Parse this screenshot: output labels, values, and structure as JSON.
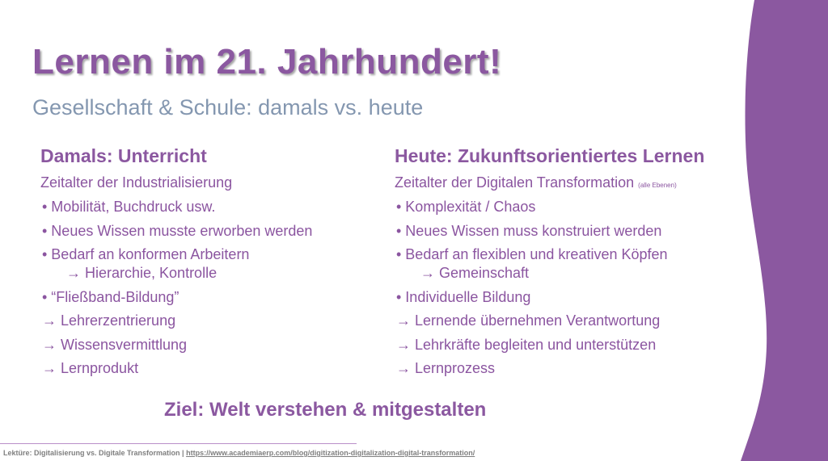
{
  "colors": {
    "accent": "#8b58a0",
    "subtitle": "#8497b0",
    "footer": "#7f7f7f"
  },
  "title": "Lernen im 21. Jahrhundert!",
  "subtitle": "Gesellschaft & Schule: damals vs. heute",
  "left": {
    "heading": "Damals: Unterricht",
    "intro": "Zeitalter der Industrialisierung",
    "items": [
      "•  Mobilität, Buchdruck usw.",
      "•  Neues Wissen musste erworben werden",
      "•  Bedarf an konformen Arbeitern",
      "      → Hierarchie, Kontrolle",
      "•  “Fließband-Bildung”",
      "→ Lehrerzentrierung",
      "→ Wissensvermittlung",
      "→ Lernprodukt"
    ]
  },
  "right": {
    "heading": "Heute: Zukunftsorientiertes Lernen",
    "intro": "Zeitalter der Digitalen Transformation",
    "intro_note": "(alle Ebenen)",
    "items": [
      "•  Komplexität / Chaos",
      "•  Neues Wissen muss konstruiert werden",
      "•  Bedarf an flexiblen und kreativen Köpfen",
      "      → Gemeinschaft",
      "•  Individuelle Bildung",
      "→ Lernende übernehmen Verantwortung",
      "→ Lehrkräfte begleiten und unterstützen",
      "→ Lernprozess"
    ]
  },
  "goal": "Ziel: Welt verstehen & mitgestalten",
  "footer": {
    "label": "Lektüre: Digitalisierung vs. Digitale Transformation | ",
    "link": "https://www.academiaerp.com/blog/digitization-digitalization-digital-transformation/"
  }
}
